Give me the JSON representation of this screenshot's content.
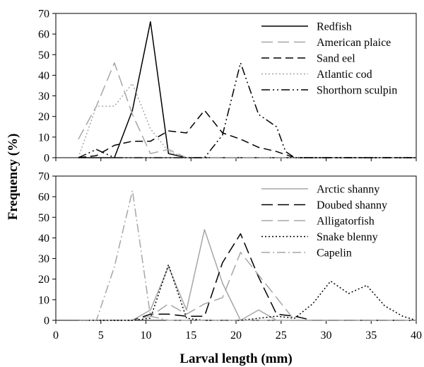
{
  "chart_data": [
    {
      "type": "line",
      "xlabel": "",
      "ylabel": "",
      "xlim": [
        0,
        40
      ],
      "ylim": [
        0,
        70
      ],
      "yticks": [
        0,
        10,
        20,
        30,
        40,
        50,
        60,
        70
      ],
      "grid": false,
      "legend_position": "top-right",
      "series": [
        {
          "name": "Redfish",
          "color": "#000000",
          "dash": "solid",
          "x": [
            2.5,
            4.5,
            6.5,
            8.5,
            10.5,
            12.5,
            14.5,
            16.5,
            18.5,
            20.5,
            22.5,
            24.5,
            26.5,
            28.5,
            30.5,
            32.5,
            34.5,
            36.5,
            38.5,
            40
          ],
          "y": [
            0,
            0,
            0,
            23,
            66,
            2,
            0,
            0,
            0,
            0,
            0,
            0,
            0,
            0,
            0,
            0,
            0,
            0,
            0,
            0
          ]
        },
        {
          "name": "American plaice",
          "color": "#a6a6a6",
          "dash": "longdash",
          "x": [
            2.5,
            4.5,
            6.5,
            8.5,
            10.5,
            12.5,
            14.5,
            16.5,
            18.5,
            20.5,
            22.5,
            24.5,
            26.5,
            28.5,
            30.5,
            32.5,
            34.5,
            36.5,
            38.5,
            40
          ],
          "y": [
            9,
            25,
            46,
            21,
            2,
            4,
            0,
            0,
            0,
            0,
            0,
            0,
            0,
            0,
            0,
            0,
            0,
            0,
            0,
            0
          ]
        },
        {
          "name": "Sand eel",
          "color": "#000000",
          "dash": "dash",
          "x": [
            2.5,
            4.5,
            6.5,
            8.5,
            10.5,
            12.5,
            14.5,
            16.5,
            18.5,
            20.5,
            22.5,
            24.5,
            26.5,
            28.5,
            30.5,
            32.5,
            34.5,
            36.5,
            38.5,
            40
          ],
          "y": [
            0,
            1,
            6,
            8,
            8,
            13,
            12,
            23,
            12,
            9,
            5,
            3,
            0,
            0,
            0,
            0,
            0,
            0,
            0,
            0
          ]
        },
        {
          "name": "Atlantic cod",
          "color": "#a6a6a6",
          "dash": "dot",
          "x": [
            2.5,
            4.5,
            6.5,
            8.5,
            10.5,
            12.5,
            14.5,
            16.5,
            18.5,
            20.5,
            22.5,
            24.5,
            26.5,
            28.5,
            30.5,
            32.5,
            34.5,
            36.5,
            38.5,
            40
          ],
          "y": [
            0,
            25,
            25,
            36,
            14,
            3,
            0,
            0,
            0,
            0,
            0,
            0,
            0,
            0,
            0,
            0,
            0,
            0,
            0,
            0
          ]
        },
        {
          "name": "Shorthorn sculpin",
          "color": "#000000",
          "dash": "dashdotdot",
          "x": [
            2.5,
            4.5,
            6.5,
            8.5,
            10.5,
            12.5,
            14.5,
            16.5,
            18.5,
            20.5,
            22.5,
            24.5,
            25.5,
            26.5,
            28.5,
            30.5,
            32.5,
            34.5,
            36.5,
            38.5,
            40
          ],
          "y": [
            0,
            4,
            0,
            0,
            0,
            0,
            0,
            0,
            11,
            46,
            21,
            15,
            3,
            0,
            0,
            0,
            0,
            0,
            0,
            0,
            0
          ]
        }
      ]
    },
    {
      "type": "line",
      "xlabel": "Larval length (mm)",
      "ylabel": "",
      "xlim": [
        0,
        40
      ],
      "ylim": [
        0,
        70
      ],
      "xticks": [
        0,
        5,
        10,
        15,
        20,
        25,
        30,
        35,
        40
      ],
      "yticks": [
        0,
        10,
        20,
        30,
        40,
        50,
        60,
        70
      ],
      "grid": false,
      "legend_position": "top-right",
      "series": [
        {
          "name": "Arctic shanny",
          "color": "#a6a6a6",
          "dash": "solid",
          "x": [
            2.5,
            4.5,
            6.5,
            8.5,
            10.5,
            12.5,
            14.5,
            16.5,
            18.5,
            20.5,
            22.5,
            24.5,
            26.5,
            28.5,
            30.5,
            32.5,
            34.5,
            36.5,
            38.5,
            40
          ],
          "y": [
            0,
            0,
            0,
            0,
            5,
            26,
            5,
            44,
            18,
            0,
            5,
            0,
            0,
            0,
            0,
            0,
            0,
            0,
            0,
            0
          ]
        },
        {
          "name": "Doubed shanny",
          "color": "#000000",
          "dash": "longdash",
          "x": [
            2.5,
            4.5,
            6.5,
            8.5,
            10.5,
            12.5,
            14.5,
            16.5,
            18.5,
            20.5,
            22.5,
            24.5,
            26.5,
            28.5,
            30.5,
            32.5,
            34.5,
            36.5,
            38.5,
            40
          ],
          "y": [
            0,
            0,
            0,
            0,
            3,
            3,
            2,
            2,
            28,
            42,
            21,
            3,
            2,
            0,
            0,
            0,
            0,
            0,
            0,
            0
          ]
        },
        {
          "name": "Alligatorfish",
          "color": "#a6a6a6",
          "dash": "longdash",
          "x": [
            2.5,
            4.5,
            6.5,
            8.5,
            10.5,
            12.5,
            14.5,
            16.5,
            18.5,
            20.5,
            22.5,
            24.5,
            26.5,
            28.5,
            30.5,
            32.5,
            34.5,
            36.5,
            38.5,
            40
          ],
          "y": [
            0,
            0,
            0,
            0,
            2,
            8,
            3,
            8,
            11,
            33,
            22,
            11,
            0,
            0,
            0,
            0,
            0,
            0,
            0,
            0
          ]
        },
        {
          "name": "Snake blenny",
          "color": "#000000",
          "dash": "dot",
          "x": [
            2.5,
            4.5,
            6.5,
            8.5,
            10.5,
            12.5,
            14.5,
            16.5,
            18.5,
            20.5,
            22.5,
            24.5,
            26.5,
            28.5,
            30.5,
            32.5,
            34.5,
            36.5,
            38.5,
            40
          ],
          "y": [
            0,
            0,
            0,
            0,
            1,
            27,
            1,
            0,
            0,
            0,
            1,
            2,
            1,
            8,
            19,
            13,
            17,
            7,
            2,
            0
          ]
        },
        {
          "name": "Capelin",
          "color": "#a6a6a6",
          "dash": "dashdot",
          "x": [
            2.5,
            4.5,
            6.5,
            8.5,
            10.5,
            12.5,
            14.5,
            16.5,
            18.5,
            20.5,
            22.5,
            24.5,
            26.5,
            28.5,
            30.5,
            32.5,
            34.5,
            36.5,
            38.5,
            40
          ],
          "y": [
            0,
            0,
            26,
            63,
            2,
            0,
            0,
            0,
            0,
            0,
            0,
            0,
            0,
            0,
            0,
            0,
            0,
            0,
            0,
            0
          ]
        }
      ]
    }
  ],
  "shared_ylabel": "Frequency (%)"
}
